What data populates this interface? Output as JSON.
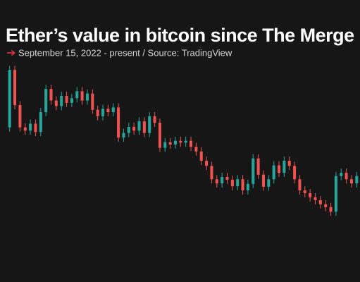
{
  "chart_data": {
    "type": "candlestick",
    "title": "Ether’s value in bitcoin since The Merge",
    "subtitle": "September 15, 2022 - present / Source: TradingView",
    "ylim": [
      0.05,
      0.085
    ],
    "up_color": "#26a69a",
    "down_color": "#ef5350",
    "open": [
      0.0712,
      0.0836,
      0.076,
      0.0712,
      0.0705,
      0.072,
      0.0702,
      0.0745,
      0.0795,
      0.077,
      0.0758,
      0.078,
      0.0765,
      0.0775,
      0.079,
      0.077,
      0.0785,
      0.075,
      0.0736,
      0.0752,
      0.0745,
      0.0755,
      0.069,
      0.07,
      0.0713,
      0.0705,
      0.0725,
      0.07,
      0.0736,
      0.0722,
      0.0668,
      0.068,
      0.0675,
      0.0683,
      0.0679,
      0.0683,
      0.067,
      0.066,
      0.064,
      0.0629,
      0.06,
      0.0591,
      0.0605,
      0.0599,
      0.0585,
      0.06,
      0.0576,
      0.059,
      0.0645,
      0.061,
      0.0584,
      0.06,
      0.063,
      0.0614,
      0.064,
      0.0629,
      0.06,
      0.0576,
      0.057,
      0.0561,
      0.0555,
      0.0546,
      0.054,
      0.053,
      0.0607,
      0.0614,
      0.06,
      0.0591
    ],
    "high": [
      0.0845,
      0.0845,
      0.0769,
      0.0721,
      0.0729,
      0.0729,
      0.0754,
      0.0804,
      0.0804,
      0.0779,
      0.0789,
      0.0789,
      0.0784,
      0.0799,
      0.0799,
      0.0794,
      0.0794,
      0.0759,
      0.0761,
      0.0761,
      0.0764,
      0.0764,
      0.0709,
      0.0722,
      0.0722,
      0.0734,
      0.0734,
      0.0745,
      0.0745,
      0.0731,
      0.0689,
      0.0689,
      0.0692,
      0.0692,
      0.0692,
      0.0692,
      0.0679,
      0.0669,
      0.0649,
      0.0638,
      0.0609,
      0.0614,
      0.0614,
      0.0608,
      0.0609,
      0.0609,
      0.0599,
      0.0654,
      0.0654,
      0.0619,
      0.0609,
      0.0639,
      0.0639,
      0.0649,
      0.0649,
      0.0638,
      0.0609,
      0.0585,
      0.0579,
      0.057,
      0.0564,
      0.0555,
      0.0549,
      0.0616,
      0.0623,
      0.0623,
      0.0609,
      0.0616
    ],
    "low": [
      0.0703,
      0.0751,
      0.0703,
      0.0696,
      0.0696,
      0.0693,
      0.0693,
      0.0736,
      0.0761,
      0.0749,
      0.0749,
      0.0756,
      0.0756,
      0.0766,
      0.0761,
      0.0761,
      0.0741,
      0.0727,
      0.0727,
      0.0736,
      0.0736,
      0.0681,
      0.0681,
      0.0691,
      0.0696,
      0.0696,
      0.0691,
      0.0691,
      0.0713,
      0.0659,
      0.0659,
      0.0666,
      0.0666,
      0.067,
      0.067,
      0.0661,
      0.0651,
      0.0631,
      0.062,
      0.0591,
      0.0582,
      0.0582,
      0.059,
      0.0576,
      0.0576,
      0.0567,
      0.0567,
      0.0581,
      0.0601,
      0.0575,
      0.0575,
      0.0591,
      0.0605,
      0.0605,
      0.062,
      0.0591,
      0.0567,
      0.0561,
      0.0552,
      0.0546,
      0.0537,
      0.0531,
      0.0521,
      0.0521,
      0.0598,
      0.0591,
      0.0582,
      0.0582
    ],
    "close": [
      0.0836,
      0.076,
      0.0712,
      0.0705,
      0.072,
      0.0702,
      0.0745,
      0.0795,
      0.077,
      0.0758,
      0.078,
      0.0765,
      0.0775,
      0.079,
      0.077,
      0.0785,
      0.075,
      0.0736,
      0.0752,
      0.0745,
      0.0755,
      0.069,
      0.07,
      0.0713,
      0.0705,
      0.0725,
      0.07,
      0.0736,
      0.0722,
      0.0668,
      0.068,
      0.0675,
      0.0683,
      0.0679,
      0.0683,
      0.067,
      0.066,
      0.064,
      0.0629,
      0.06,
      0.0591,
      0.0605,
      0.0599,
      0.0585,
      0.06,
      0.0576,
      0.059,
      0.0645,
      0.061,
      0.0584,
      0.06,
      0.063,
      0.0614,
      0.064,
      0.0629,
      0.06,
      0.0576,
      0.057,
      0.0561,
      0.0555,
      0.0546,
      0.054,
      0.053,
      0.0607,
      0.0614,
      0.06,
      0.0591,
      0.0607
    ]
  }
}
